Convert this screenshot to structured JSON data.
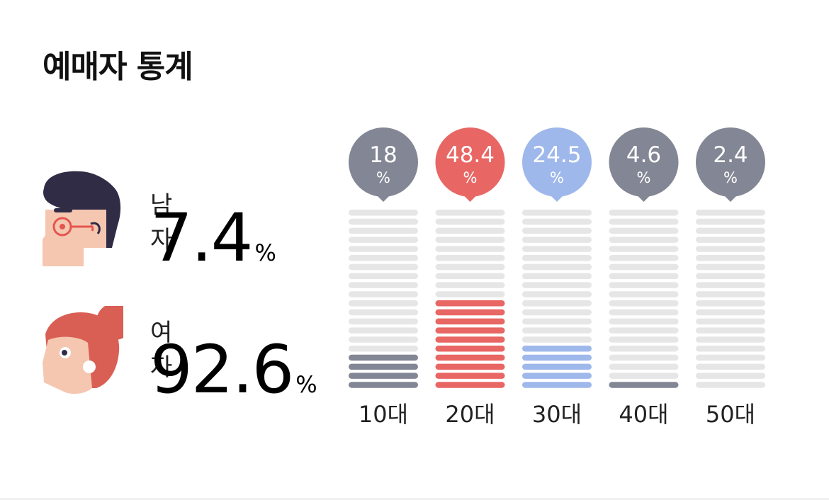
{
  "title": "예매자 통계",
  "gender": {
    "male": {
      "label": "남자",
      "value": "7.4",
      "unit": "%"
    },
    "female": {
      "label": "여자",
      "value": "92.6",
      "unit": "%"
    }
  },
  "colors": {
    "gray": "#838694",
    "red": "#e86663",
    "blue": "#9fb8eb",
    "empty": "#e6e6e6",
    "male_hair": "#312c45",
    "male_skin": "#f5c7b1",
    "glasses": "#e3564f",
    "female_hair": "#d95f55",
    "female_skin": "#f5c7b1"
  },
  "chart_data": {
    "type": "bar",
    "categories": [
      "10대",
      "20대",
      "30대",
      "40대",
      "50대"
    ],
    "values": [
      18,
      48.4,
      24.5,
      4.6,
      2.4
    ],
    "unit": "%",
    "labels": [
      "18",
      "48.4",
      "24.5",
      "4.6",
      "2.4"
    ],
    "series_colors": [
      "#838694",
      "#e86663",
      "#9fb8eb",
      "#838694",
      "#838694"
    ],
    "segments_total": 20,
    "segments_filled": [
      4,
      10,
      5,
      1,
      0
    ],
    "ylim": [
      0,
      100
    ],
    "title": "",
    "xlabel": "",
    "ylabel": ""
  }
}
